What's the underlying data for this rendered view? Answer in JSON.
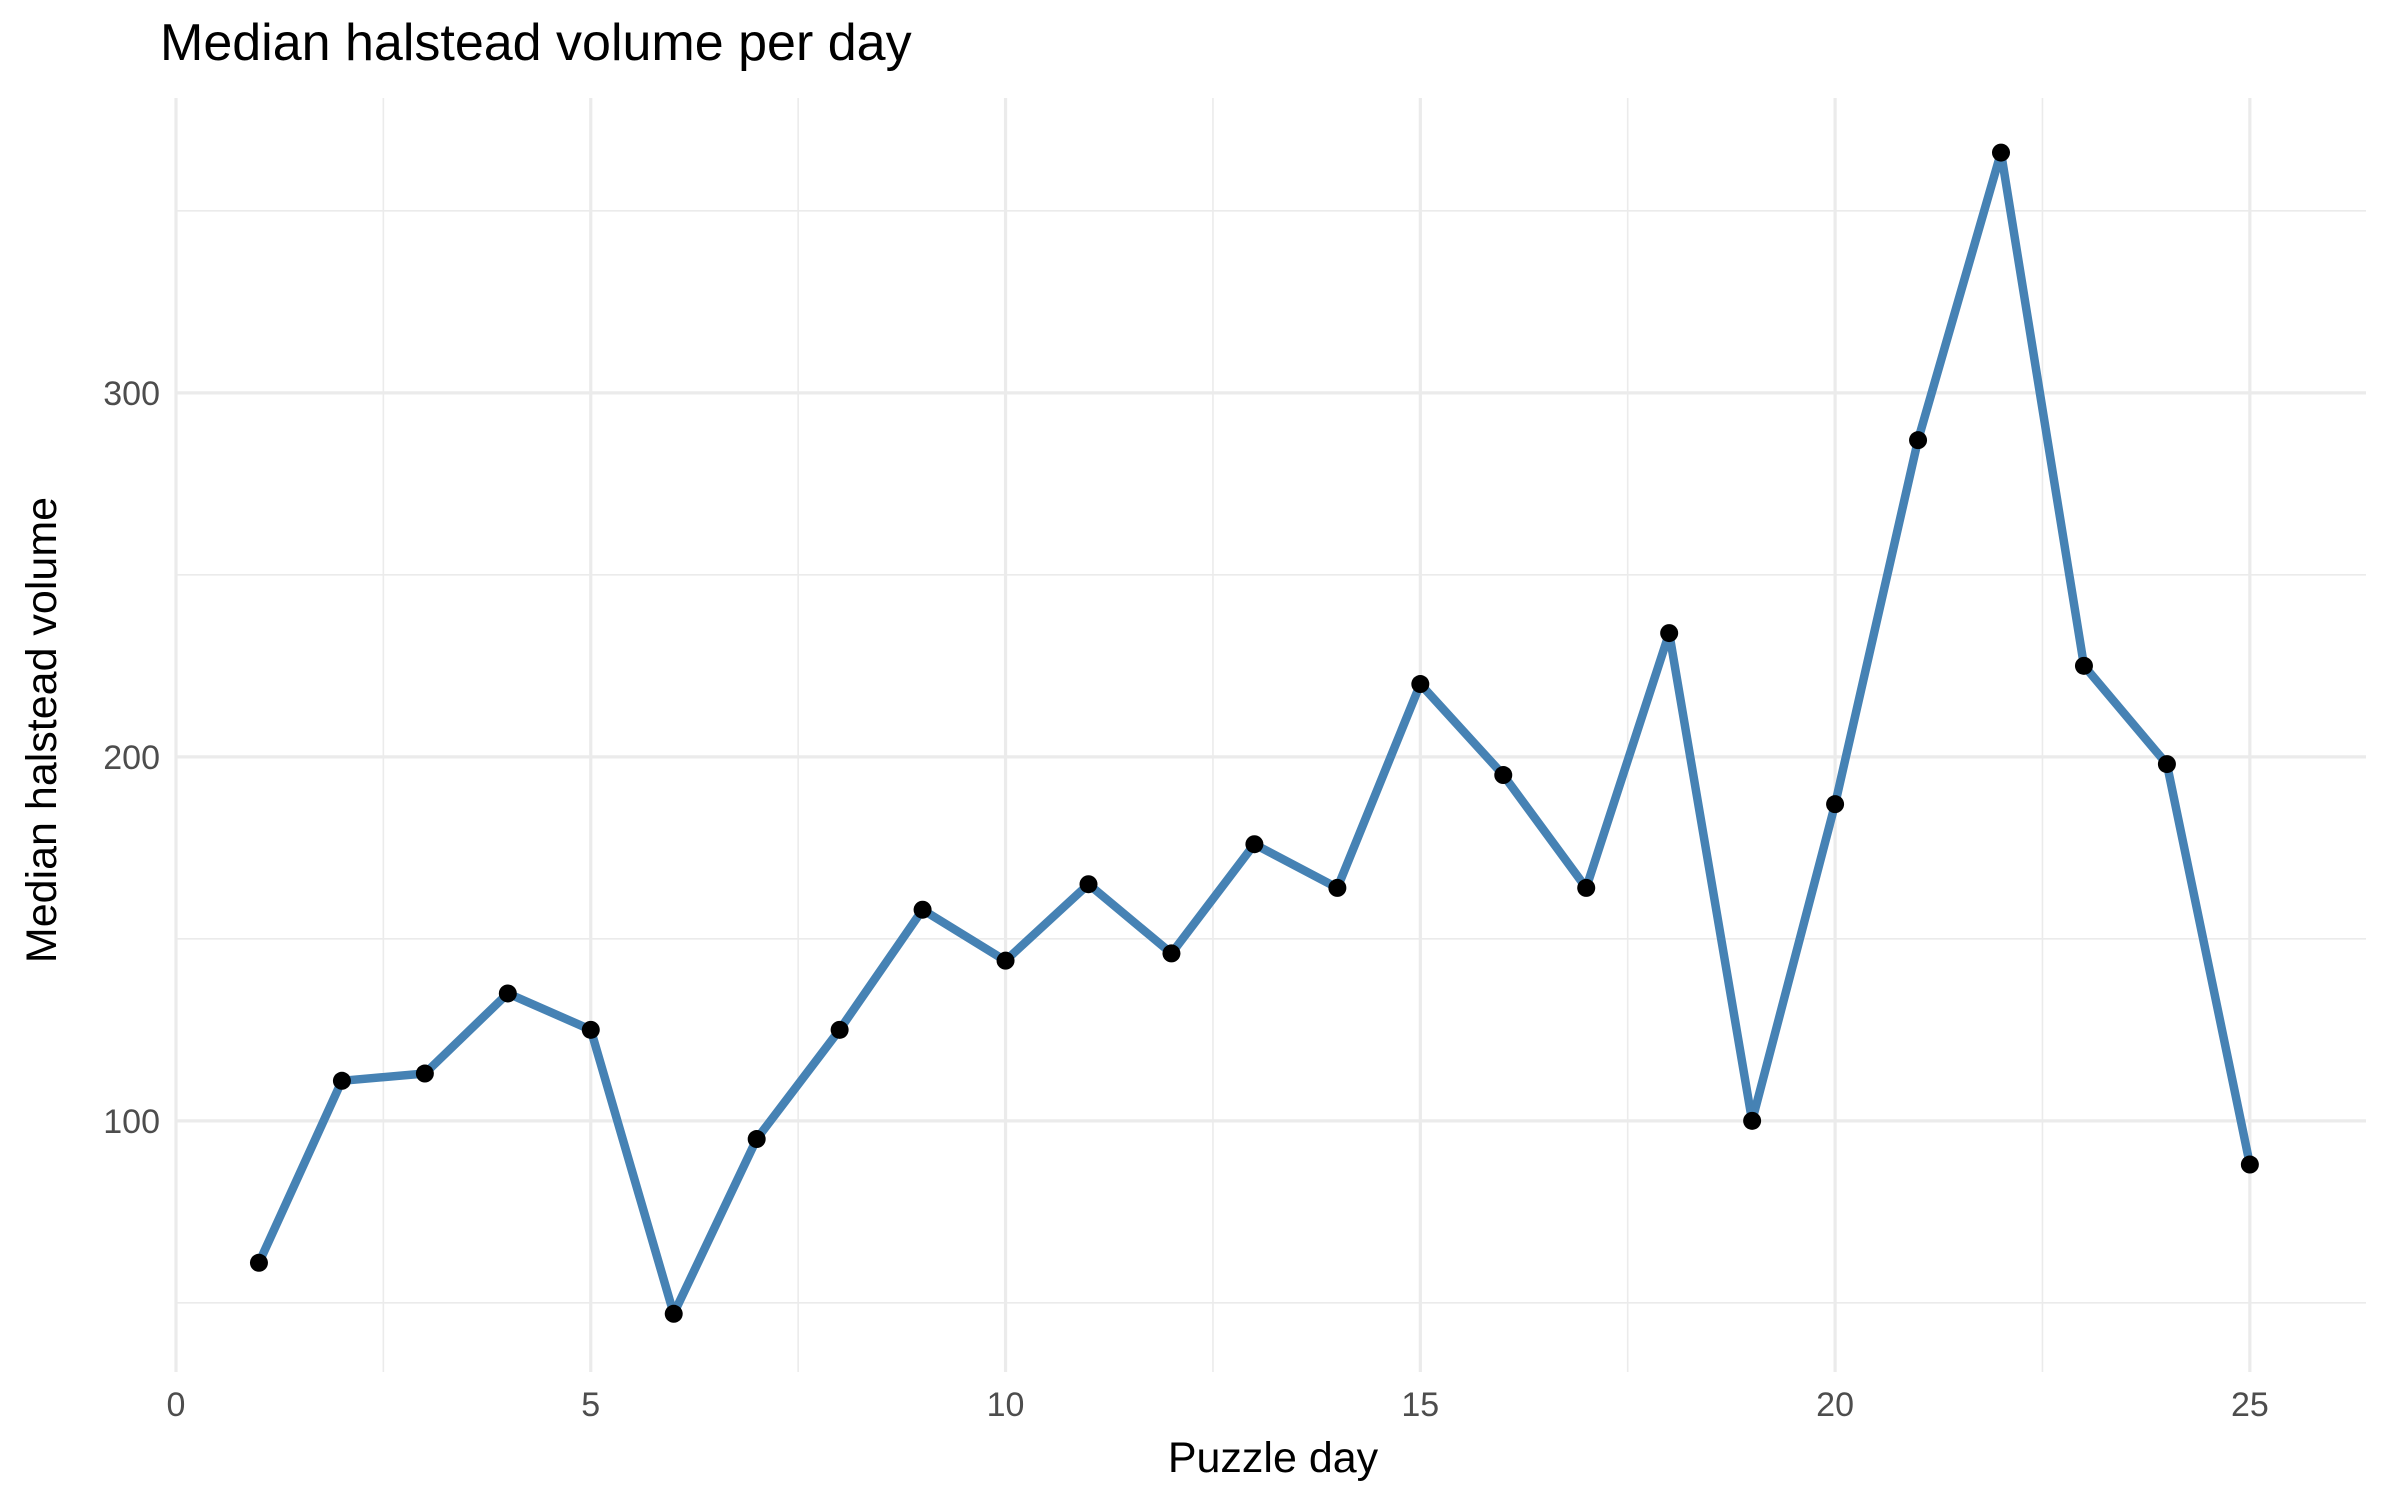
{
  "chart_data": {
    "type": "line",
    "title": "Median halstead volume per day",
    "xlabel": "Puzzle day",
    "ylabel": "Median halstead volume",
    "x": [
      1,
      2,
      3,
      4,
      5,
      6,
      7,
      8,
      9,
      10,
      11,
      12,
      13,
      14,
      15,
      16,
      17,
      18,
      19,
      20,
      21,
      22,
      23,
      24,
      25
    ],
    "series": [
      {
        "name": "",
        "values": [
          61,
          111,
          113,
          135,
          125,
          47,
          95,
          125,
          158,
          144,
          165,
          146,
          176,
          164,
          220,
          195,
          164,
          234,
          100,
          187,
          287,
          366,
          225,
          198,
          88
        ]
      }
    ],
    "xlim": [
      0,
      26.4
    ],
    "ylim": [
      31,
      381
    ],
    "xticks": [
      0,
      5,
      10,
      15,
      20,
      25
    ],
    "xticks_minor": [
      2.5,
      7.5,
      12.5,
      17.5,
      22.5
    ],
    "yticks": [
      100,
      200,
      300
    ],
    "yticks_minor": [
      50,
      150,
      250,
      350
    ],
    "grid": true,
    "legend": "none",
    "colors": {
      "line": "#4682b4",
      "point": "#000000",
      "grid": "#ebebeb",
      "tick_text": "#4d4d4d"
    }
  }
}
